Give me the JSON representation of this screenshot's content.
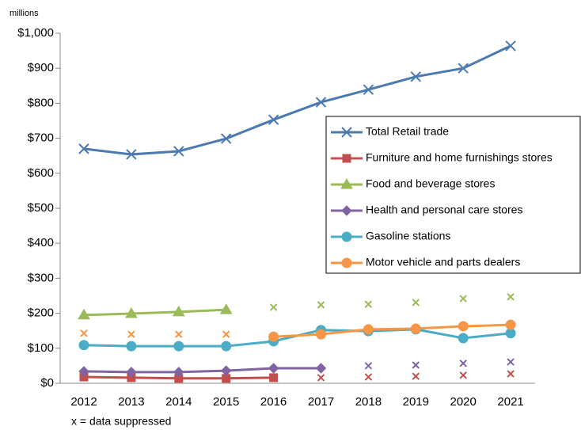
{
  "chart_data": {
    "type": "line",
    "y_axis_label": "millions",
    "note": "x = data suppressed",
    "categories": [
      "2012",
      "2013",
      "2014",
      "2015",
      "2016",
      "2017",
      "2018",
      "2019",
      "2020",
      "2021"
    ],
    "ylim": [
      0,
      1000
    ],
    "yticks": [
      {
        "value": 0,
        "label": "$0"
      },
      {
        "value": 100,
        "label": "$100"
      },
      {
        "value": 200,
        "label": "$200"
      },
      {
        "value": 300,
        "label": "$300"
      },
      {
        "value": 400,
        "label": "$400"
      },
      {
        "value": 500,
        "label": "$500"
      },
      {
        "value": 600,
        "label": "$600"
      },
      {
        "value": 700,
        "label": "$700"
      },
      {
        "value": 800,
        "label": "$800"
      },
      {
        "value": 900,
        "label": "$900"
      },
      {
        "value": 1000,
        "label": "$1,000"
      }
    ],
    "series": [
      {
        "name": "Total Retail trade",
        "color": "#4a7ab0",
        "marker": "x",
        "values": [
          670,
          654,
          663,
          699,
          753,
          803,
          839,
          876,
          900,
          964
        ]
      },
      {
        "name": "Furniture and home furnishings stores",
        "color": "#c0504d",
        "marker": "square",
        "values": [
          18,
          16,
          14,
          14,
          16,
          null,
          null,
          null,
          null,
          null
        ],
        "suppressed": [
          null,
          null,
          null,
          null,
          null,
          16,
          18,
          20,
          23,
          27
        ]
      },
      {
        "name": "Food and beverage stores",
        "color": "#9bbb59",
        "marker": "triangle",
        "values": [
          195,
          199,
          204,
          210,
          null,
          null,
          null,
          null,
          null,
          null
        ],
        "suppressed": [
          null,
          null,
          null,
          null,
          217,
          224,
          226,
          231,
          242,
          247
        ]
      },
      {
        "name": "Health and personal care stores",
        "color": "#8064a2",
        "marker": "diamond",
        "values": [
          34,
          32,
          32,
          36,
          43,
          43,
          null,
          null,
          null,
          null
        ],
        "suppressed": [
          null,
          null,
          null,
          null,
          null,
          null,
          50,
          52,
          57,
          61
        ]
      },
      {
        "name": "Gasoline stations",
        "color": "#4bacc6",
        "marker": "circle",
        "values": [
          109,
          106,
          106,
          106,
          120,
          152,
          149,
          154,
          129,
          143
        ]
      },
      {
        "name": "Motor vehicle and parts dealers",
        "color": "#f79646",
        "marker": "circle",
        "values": [
          null,
          null,
          null,
          null,
          133,
          140,
          154,
          156,
          163,
          167
        ],
        "suppressed": [
          143,
          140,
          140,
          140,
          null,
          null,
          null,
          null,
          null,
          null
        ]
      }
    ]
  }
}
